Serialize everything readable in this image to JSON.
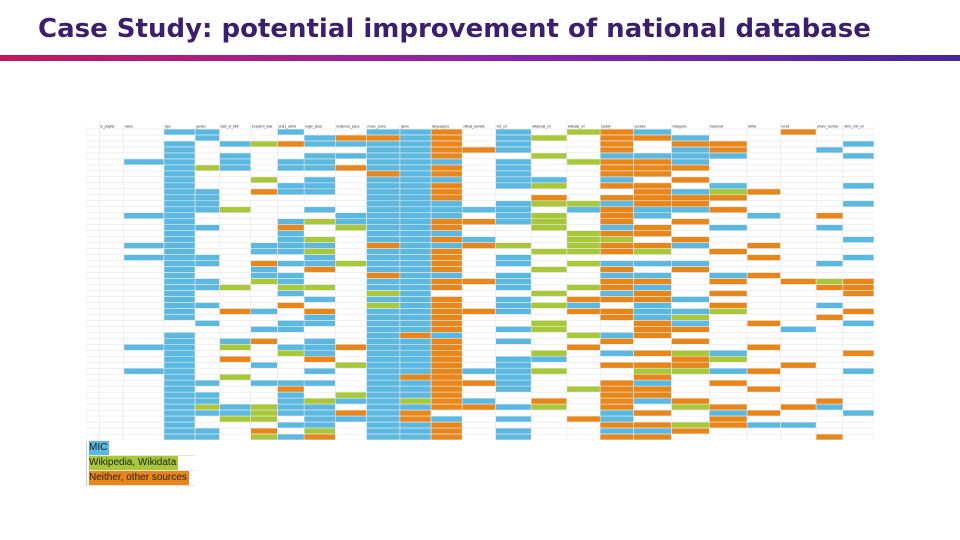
{
  "slide": {
    "title": "Case Study: potential improvement of national database",
    "bar_gradient": [
      "#c2185b",
      "#8e24aa",
      "#4527a0"
    ]
  },
  "spreadsheet": {
    "columns": [
      "ts_playlist",
      "name",
      "type",
      "gender",
      "date_of_birth",
      "inception_date",
      "years_active",
      "origin_place",
      "residence_place",
      "music_scene",
      "genre",
      "language(s)",
      "official_website",
      "mic_url",
      "wikipedia_url",
      "wikidata_url",
      "spotify",
      "youtube",
      "instagram",
      "facebook",
      "twitter",
      "email",
      "phone_number",
      "mimc_info_url"
    ],
    "cell_colors": {
      "empty": "#ffffff",
      "blue": "#5bb8e0",
      "green": "#a8c83a",
      "orange": "#e8861a",
      "grid": "#d9d9d9"
    }
  },
  "legend": [
    {
      "label": "MIC",
      "color": "#5bb8e0"
    },
    {
      "label": "Wikipedia, Wikidata",
      "color": "#a8c83a"
    },
    {
      "label": "Neither, other sources",
      "color": "#e8861a"
    }
  ]
}
